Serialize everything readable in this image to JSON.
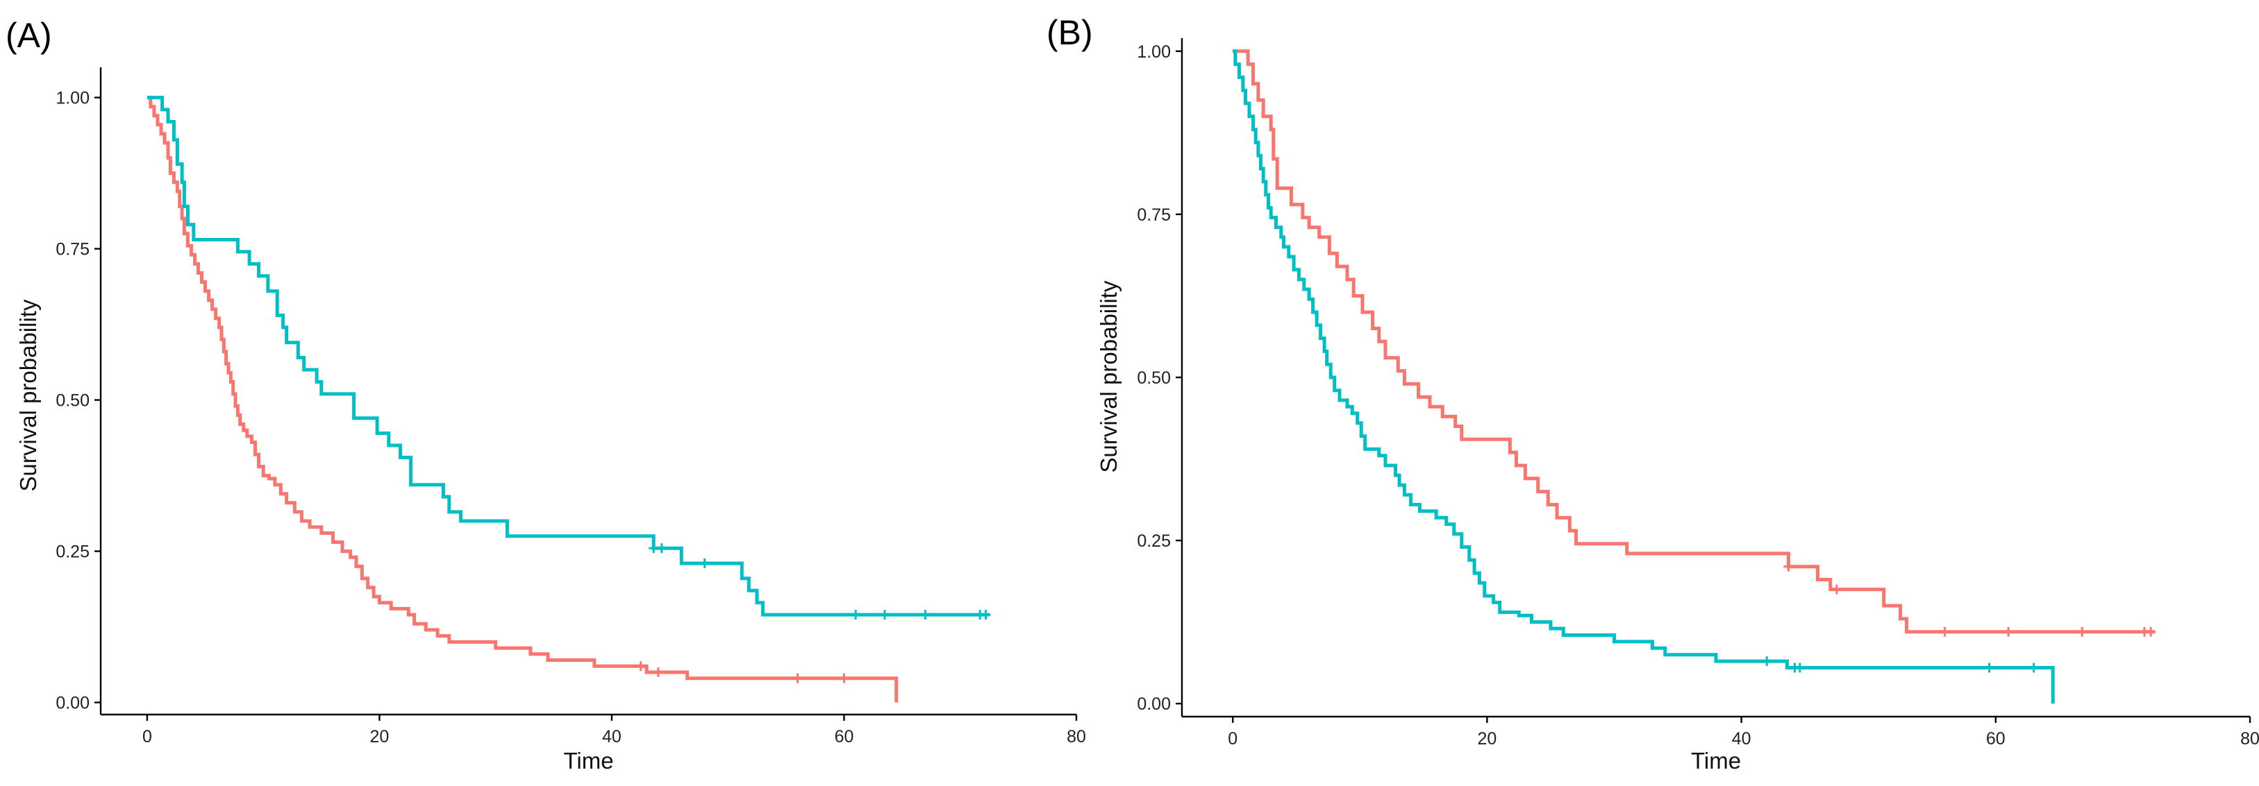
{
  "figure": {
    "panels": [
      {
        "label": "(A)"
      },
      {
        "label": "(B)"
      }
    ]
  },
  "chart_data": [
    {
      "type": "line",
      "subtype": "kaplan-meier step",
      "title": "",
      "panel_label": "(A)",
      "xlabel": "Time",
      "ylabel": "Survival probability",
      "xlim": [
        -4,
        80
      ],
      "ylim": [
        -0.02,
        1.05
      ],
      "xticks": [
        0,
        20,
        40,
        60,
        80
      ],
      "xtick_labels": [
        "0",
        "20",
        "40",
        "60",
        "80"
      ],
      "yticks": [
        0,
        0.25,
        0.5,
        0.75,
        1.0
      ],
      "ytick_labels": [
        "0.00",
        "0.25",
        "0.50",
        "0.75",
        "1.00"
      ],
      "grid": false,
      "legend": "none",
      "series": [
        {
          "name": "red group",
          "color": "#F8766D",
          "steps": [
            [
              0,
              1.0
            ],
            [
              0.3,
              0.985
            ],
            [
              0.6,
              0.97
            ],
            [
              0.9,
              0.955
            ],
            [
              1.2,
              0.94
            ],
            [
              1.5,
              0.925
            ],
            [
              1.8,
              0.9
            ],
            [
              2.0,
              0.875
            ],
            [
              2.3,
              0.86
            ],
            [
              2.6,
              0.845
            ],
            [
              2.8,
              0.82
            ],
            [
              3.0,
              0.8
            ],
            [
              3.2,
              0.775
            ],
            [
              3.5,
              0.755
            ],
            [
              3.8,
              0.74
            ],
            [
              4.1,
              0.725
            ],
            [
              4.4,
              0.71
            ],
            [
              4.7,
              0.695
            ],
            [
              5.0,
              0.68
            ],
            [
              5.3,
              0.665
            ],
            [
              5.6,
              0.65
            ],
            [
              5.9,
              0.635
            ],
            [
              6.2,
              0.62
            ],
            [
              6.4,
              0.6
            ],
            [
              6.6,
              0.58
            ],
            [
              6.8,
              0.56
            ],
            [
              7.0,
              0.545
            ],
            [
              7.2,
              0.53
            ],
            [
              7.4,
              0.51
            ],
            [
              7.6,
              0.49
            ],
            [
              7.8,
              0.475
            ],
            [
              8.0,
              0.46
            ],
            [
              8.3,
              0.45
            ],
            [
              8.6,
              0.44
            ],
            [
              9.0,
              0.43
            ],
            [
              9.3,
              0.41
            ],
            [
              9.6,
              0.39
            ],
            [
              10.0,
              0.375
            ],
            [
              10.5,
              0.37
            ],
            [
              11.0,
              0.36
            ],
            [
              11.5,
              0.345
            ],
            [
              12.0,
              0.33
            ],
            [
              12.7,
              0.315
            ],
            [
              13.3,
              0.3
            ],
            [
              14.0,
              0.29
            ],
            [
              15.0,
              0.28
            ],
            [
              16.0,
              0.265
            ],
            [
              16.8,
              0.25
            ],
            [
              17.5,
              0.24
            ],
            [
              18.0,
              0.225
            ],
            [
              18.5,
              0.205
            ],
            [
              19.0,
              0.19
            ],
            [
              19.5,
              0.175
            ],
            [
              20.0,
              0.165
            ],
            [
              21.0,
              0.155
            ],
            [
              22.5,
              0.145
            ],
            [
              23.0,
              0.13
            ],
            [
              24.0,
              0.12
            ],
            [
              25.0,
              0.11
            ],
            [
              26.0,
              0.1
            ],
            [
              30.0,
              0.09
            ],
            [
              33.0,
              0.08
            ],
            [
              34.5,
              0.07
            ],
            [
              38.5,
              0.06
            ],
            [
              43.0,
              0.05
            ],
            [
              46.5,
              0.04
            ],
            [
              64.5,
              0.0
            ]
          ],
          "censor_times": [
            42.5,
            44.0,
            56.0,
            60.0
          ]
        },
        {
          "name": "teal group",
          "color": "#00BFC4",
          "steps": [
            [
              0,
              1.0
            ],
            [
              1.3,
              0.98
            ],
            [
              1.8,
              0.96
            ],
            [
              2.3,
              0.93
            ],
            [
              2.6,
              0.89
            ],
            [
              3.0,
              0.86
            ],
            [
              3.2,
              0.82
            ],
            [
              3.5,
              0.79
            ],
            [
              4.0,
              0.765
            ],
            [
              7.8,
              0.745
            ],
            [
              8.8,
              0.725
            ],
            [
              9.6,
              0.705
            ],
            [
              10.4,
              0.68
            ],
            [
              11.2,
              0.64
            ],
            [
              11.7,
              0.62
            ],
            [
              12.0,
              0.595
            ],
            [
              13.0,
              0.57
            ],
            [
              13.5,
              0.55
            ],
            [
              14.6,
              0.53
            ],
            [
              15.0,
              0.51
            ],
            [
              17.8,
              0.47
            ],
            [
              19.8,
              0.445
            ],
            [
              20.8,
              0.425
            ],
            [
              21.8,
              0.405
            ],
            [
              22.7,
              0.36
            ],
            [
              25.5,
              0.34
            ],
            [
              26.0,
              0.315
            ],
            [
              27.0,
              0.3
            ],
            [
              31.0,
              0.275
            ],
            [
              43.6,
              0.255
            ],
            [
              46.0,
              0.23
            ],
            [
              51.2,
              0.205
            ],
            [
              51.8,
              0.185
            ],
            [
              52.5,
              0.165
            ],
            [
              53.0,
              0.145
            ]
          ],
          "end_time": 72.5,
          "censor_times": [
            43.6,
            44.3,
            48.0,
            61.0,
            63.5,
            67.0,
            71.7,
            72.2
          ]
        }
      ]
    },
    {
      "type": "line",
      "subtype": "kaplan-meier step",
      "title": "",
      "panel_label": "(B)",
      "xlabel": "Time",
      "ylabel": "Survival probability",
      "xlim": [
        -4,
        80
      ],
      "ylim": [
        -0.02,
        1.02
      ],
      "xticks": [
        0,
        20,
        40,
        60,
        80
      ],
      "xtick_labels": [
        "0",
        "20",
        "40",
        "60",
        "80"
      ],
      "yticks": [
        0,
        0.25,
        0.5,
        0.75,
        1.0
      ],
      "ytick_labels": [
        "0.00",
        "0.25",
        "0.50",
        "0.75",
        "1.00"
      ],
      "grid": false,
      "legend": "none",
      "series": [
        {
          "name": "red group",
          "color": "#F8766D",
          "steps": [
            [
              0,
              1.0
            ],
            [
              1.2,
              0.98
            ],
            [
              1.6,
              0.95
            ],
            [
              2.0,
              0.925
            ],
            [
              2.4,
              0.9
            ],
            [
              3.0,
              0.88
            ],
            [
              3.2,
              0.835
            ],
            [
              3.5,
              0.79
            ],
            [
              4.6,
              0.765
            ],
            [
              5.5,
              0.745
            ],
            [
              6.0,
              0.73
            ],
            [
              6.8,
              0.715
            ],
            [
              7.6,
              0.69
            ],
            [
              8.2,
              0.67
            ],
            [
              9.0,
              0.65
            ],
            [
              9.5,
              0.625
            ],
            [
              10.2,
              0.6
            ],
            [
              11.0,
              0.575
            ],
            [
              11.5,
              0.555
            ],
            [
              12.0,
              0.53
            ],
            [
              13.0,
              0.51
            ],
            [
              13.5,
              0.49
            ],
            [
              14.6,
              0.47
            ],
            [
              15.5,
              0.455
            ],
            [
              16.5,
              0.44
            ],
            [
              17.5,
              0.425
            ],
            [
              18.0,
              0.405
            ],
            [
              21.8,
              0.385
            ],
            [
              22.3,
              0.365
            ],
            [
              23.0,
              0.345
            ],
            [
              24.0,
              0.325
            ],
            [
              24.8,
              0.305
            ],
            [
              25.5,
              0.285
            ],
            [
              26.5,
              0.265
            ],
            [
              27.0,
              0.245
            ],
            [
              31.0,
              0.23
            ],
            [
              43.7,
              0.21
            ],
            [
              46.0,
              0.19
            ],
            [
              47.0,
              0.175
            ],
            [
              51.2,
              0.15
            ],
            [
              52.5,
              0.13
            ],
            [
              53.0,
              0.11
            ]
          ],
          "end_time": 72.5,
          "censor_times": [
            43.7,
            47.5,
            56.0,
            61.0,
            66.8,
            71.7,
            72.2
          ]
        },
        {
          "name": "teal group",
          "color": "#00BFC4",
          "steps": [
            [
              0,
              1.0
            ],
            [
              0.2,
              0.98
            ],
            [
              0.5,
              0.96
            ],
            [
              0.8,
              0.94
            ],
            [
              1.0,
              0.92
            ],
            [
              1.3,
              0.9
            ],
            [
              1.6,
              0.88
            ],
            [
              1.8,
              0.86
            ],
            [
              2.0,
              0.84
            ],
            [
              2.2,
              0.82
            ],
            [
              2.4,
              0.8
            ],
            [
              2.6,
              0.78
            ],
            [
              2.8,
              0.76
            ],
            [
              3.0,
              0.745
            ],
            [
              3.4,
              0.73
            ],
            [
              3.8,
              0.715
            ],
            [
              4.0,
              0.7
            ],
            [
              4.4,
              0.685
            ],
            [
              4.8,
              0.665
            ],
            [
              5.2,
              0.65
            ],
            [
              5.6,
              0.635
            ],
            [
              6.0,
              0.62
            ],
            [
              6.3,
              0.6
            ],
            [
              6.6,
              0.58
            ],
            [
              6.9,
              0.56
            ],
            [
              7.2,
              0.54
            ],
            [
              7.4,
              0.52
            ],
            [
              7.7,
              0.5
            ],
            [
              8.0,
              0.48
            ],
            [
              8.4,
              0.465
            ],
            [
              9.0,
              0.455
            ],
            [
              9.4,
              0.445
            ],
            [
              9.8,
              0.43
            ],
            [
              10.1,
              0.41
            ],
            [
              10.4,
              0.39
            ],
            [
              11.5,
              0.38
            ],
            [
              12.0,
              0.365
            ],
            [
              12.8,
              0.35
            ],
            [
              13.1,
              0.335
            ],
            [
              13.5,
              0.32
            ],
            [
              14.0,
              0.305
            ],
            [
              14.7,
              0.295
            ],
            [
              16.0,
              0.285
            ],
            [
              16.8,
              0.275
            ],
            [
              17.4,
              0.26
            ],
            [
              18.0,
              0.24
            ],
            [
              18.6,
              0.22
            ],
            [
              19.0,
              0.2
            ],
            [
              19.4,
              0.185
            ],
            [
              19.8,
              0.165
            ],
            [
              20.5,
              0.155
            ],
            [
              21.0,
              0.14
            ],
            [
              22.5,
              0.135
            ],
            [
              23.5,
              0.125
            ],
            [
              25.0,
              0.115
            ],
            [
              26.0,
              0.105
            ],
            [
              30.0,
              0.095
            ],
            [
              33.0,
              0.085
            ],
            [
              34.0,
              0.075
            ],
            [
              38.0,
              0.065
            ],
            [
              43.6,
              0.055
            ],
            [
              64.5,
              0.0
            ]
          ],
          "censor_times": [
            42.0,
            44.2,
            44.6,
            59.5,
            63.0
          ]
        }
      ]
    }
  ]
}
